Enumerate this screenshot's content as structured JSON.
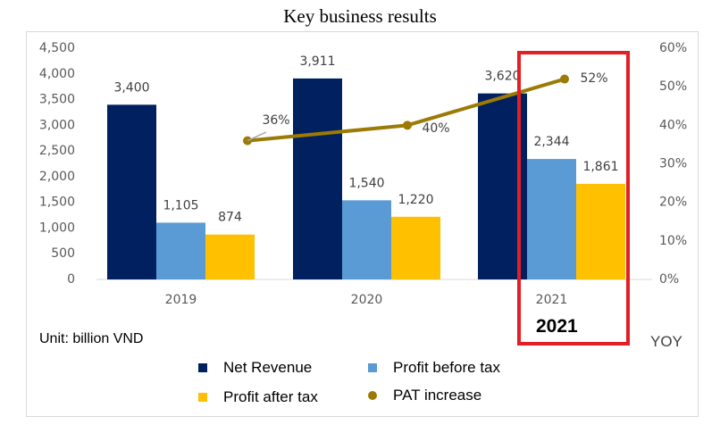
{
  "chart_data": {
    "type": "bar",
    "title": "Key business results",
    "categories": [
      "2019",
      "2020",
      "2021"
    ],
    "series": [
      {
        "name": "Net Revenue",
        "values": [
          3400,
          3911,
          3620
        ],
        "labels": [
          "3,400",
          "3,911",
          "3,620"
        ],
        "color": "#002060"
      },
      {
        "name": "Profit before tax",
        "values": [
          1105,
          1540,
          2344
        ],
        "labels": [
          "1,105",
          "1,540",
          "2,344"
        ],
        "color": "#5b9bd5"
      },
      {
        "name": "Profit after tax",
        "values": [
          874,
          1220,
          1861
        ],
        "labels": [
          "874",
          "1,220",
          "1,861"
        ],
        "color": "#ffc000"
      }
    ],
    "line_series": {
      "name": "PAT increase",
      "values": [
        36,
        40,
        52
      ],
      "labels": [
        "36%",
        "40%",
        "52%"
      ],
      "color": "#9c7a06",
      "axis": "secondary"
    },
    "y_ticks": [
      "0",
      "500",
      "1,000",
      "1,500",
      "2,000",
      "2,500",
      "3,000",
      "3,500",
      "4,000",
      "4,500"
    ],
    "ylim": [
      0,
      4500
    ],
    "y2_ticks": [
      "0%",
      "10%",
      "20%",
      "30%",
      "40%",
      "50%",
      "60%"
    ],
    "y2lim": [
      0,
      60
    ],
    "y2label": "YOY",
    "unit_note": "Unit: billion VND",
    "highlight_label": "2021",
    "highlight_color": "#e31e24",
    "legend_position": "bottom",
    "grid": false
  }
}
